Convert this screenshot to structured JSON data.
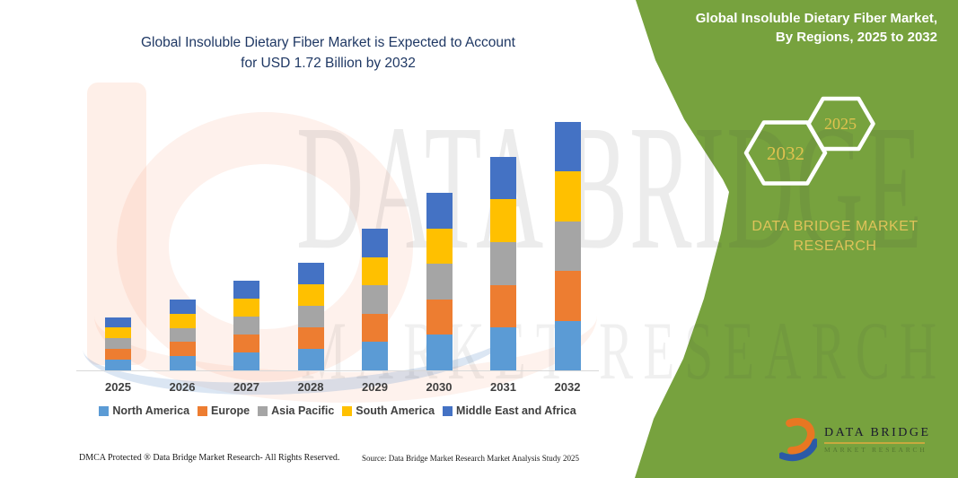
{
  "title": {
    "line1": "Global Insoluble Dietary Fiber Market is Expected to Account",
    "line2": "for USD 1.72 Billion by 2032"
  },
  "green_panel": {
    "heading_line1": "Global Insoluble Dietary Fiber Market,",
    "heading_line2": "By Regions, 2025 to 2032",
    "hexagons": [
      {
        "year": "2032"
      },
      {
        "year": "2025"
      }
    ],
    "brand_line1": "DATA BRIDGE MARKET",
    "brand_line2": "RESEARCH",
    "colors": {
      "panel_green": "#77A23E",
      "gold_text": "#DFC35A",
      "hexagon_border": "#FFFFFF"
    }
  },
  "watermark": {
    "line1": "DATA BRIDGE",
    "line2": "MARKET RESEARCH"
  },
  "logo": {
    "name": "DATA BRIDGE",
    "subtitle": "MARKET RESEARCH",
    "colors": {
      "orange": "#E87722",
      "blue": "#2B5AA7",
      "gold_rule": "#C8A93E"
    }
  },
  "chart_data": {
    "type": "bar",
    "stacked": true,
    "title": "",
    "xlabel": "",
    "ylabel": "",
    "unit": "USD Billion",
    "categories": [
      "2025",
      "2026",
      "2027",
      "2028",
      "2029",
      "2030",
      "2031",
      "2032"
    ],
    "series": [
      {
        "name": "North America",
        "color": "#5B9BD5",
        "values": [
          0.074,
          0.098,
          0.124,
          0.15,
          0.196,
          0.246,
          0.296,
          0.344
        ]
      },
      {
        "name": "Europe",
        "color": "#ED7D31",
        "values": [
          0.074,
          0.098,
          0.124,
          0.15,
          0.196,
          0.246,
          0.296,
          0.344
        ]
      },
      {
        "name": "Asia Pacific",
        "color": "#A5A5A5",
        "values": [
          0.074,
          0.098,
          0.124,
          0.15,
          0.196,
          0.246,
          0.296,
          0.344
        ]
      },
      {
        "name": "South America",
        "color": "#FFC000",
        "values": [
          0.074,
          0.098,
          0.124,
          0.15,
          0.196,
          0.246,
          0.296,
          0.344
        ]
      },
      {
        "name": "Middle East and Africa",
        "color": "#4472C4",
        "values": [
          0.074,
          0.098,
          0.124,
          0.15,
          0.196,
          0.246,
          0.296,
          0.344
        ]
      }
    ],
    "totals": [
      0.37,
      0.49,
      0.62,
      0.75,
      0.98,
      1.23,
      1.48,
      1.72
    ],
    "ylim": [
      0,
      1.8
    ],
    "grid": false,
    "legend_position": "bottom",
    "axis_line_color": "#D9D9D9"
  },
  "footer": {
    "left": "DMCA Protected ® Data Bridge Market Research-  All Rights Reserved.",
    "source": "Source: Data Bridge Market Research  Market Analysis Study 2025"
  }
}
